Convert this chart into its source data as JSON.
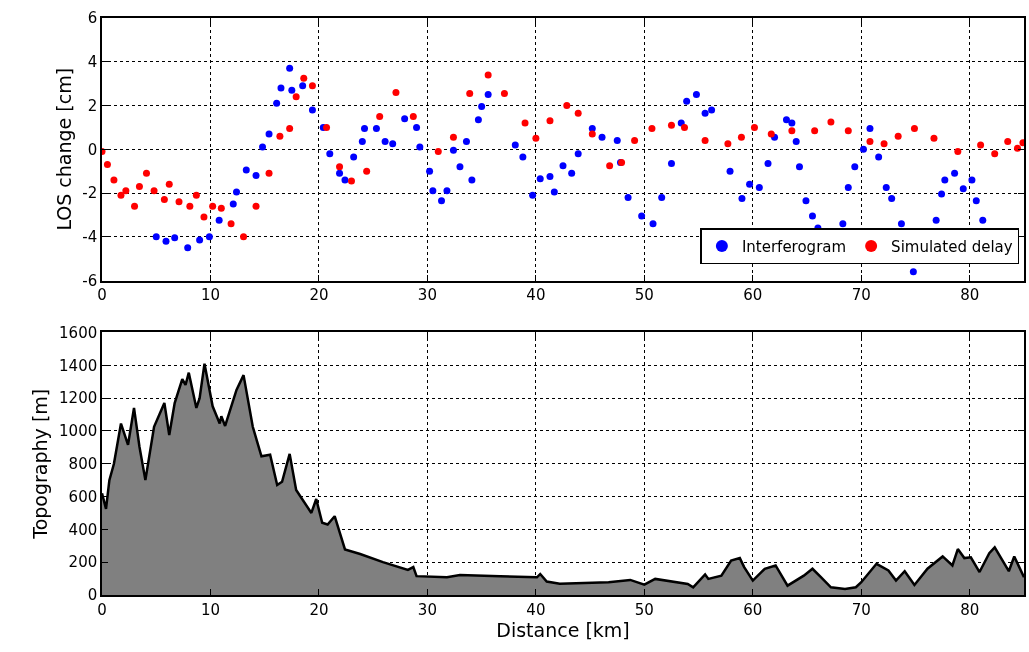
{
  "chart_data": [
    {
      "type": "scatter",
      "ylabel": "LOS change [cm]",
      "xlim": [
        0,
        85
      ],
      "xticks": [
        0,
        10,
        20,
        30,
        40,
        50,
        60,
        70,
        80
      ],
      "ylim": [
        -6,
        6
      ],
      "yticks": [
        -6,
        -4,
        -2,
        0,
        2,
        4,
        6
      ],
      "grid": true,
      "legend": "bottom right",
      "marker": "circle",
      "series": [
        {
          "name": "Interferogram",
          "color": "#0000ff",
          "x": [
            5,
            5.9,
            6.7,
            7.9,
            9,
            9.9,
            10.8,
            12.1,
            12.4,
            13.3,
            14.2,
            14.8,
            15.4,
            16.1,
            16.5,
            17.3,
            17.5,
            18.5,
            19.4,
            20.4,
            21,
            21.9,
            22.4,
            23.2,
            24,
            24.2,
            25.3,
            26.1,
            26.8,
            27.9,
            29,
            29.3,
            30.2,
            30.5,
            31.3,
            31.8,
            32.4,
            33,
            33.6,
            34.1,
            34.7,
            35,
            35.6,
            38.1,
            38.8,
            39.7,
            40.4,
            41.3,
            41.7,
            42.5,
            43.3,
            43.9,
            45.2,
            46.1,
            47.5,
            47.8,
            48.5,
            49.75,
            50.8,
            51.6,
            52.5,
            53.4,
            53.9,
            54.8,
            55.6,
            56.2,
            57.9,
            59,
            59.7,
            60.6,
            61.4,
            62,
            63.1,
            63.6,
            64,
            64.3,
            64.9,
            65.5,
            66,
            68.3,
            68.8,
            69.4,
            70.2,
            70.8,
            71.6,
            72.3,
            72.8,
            73.7,
            74.8,
            76.9,
            77.4,
            77.7,
            78.6,
            79.4,
            80.2,
            80.6,
            81.2
          ],
          "values": [
            -4.0,
            -4.2,
            -4.05,
            -4.5,
            -4.15,
            -4.0,
            -3.25,
            -2.5,
            -1.95,
            -0.95,
            -1.2,
            0.1,
            0.7,
            2.1,
            2.8,
            3.7,
            2.7,
            2.9,
            1.8,
            1.0,
            -0.2,
            -1.1,
            -1.4,
            -0.35,
            0.35,
            0.95,
            0.95,
            0.35,
            0.25,
            1.4,
            1.0,
            0.1,
            -1.0,
            -1.9,
            -2.35,
            -1.9,
            -0.05,
            -0.8,
            0.35,
            -1.4,
            1.35,
            1.95,
            2.5,
            0.2,
            -0.35,
            -2.1,
            -1.35,
            -1.25,
            -1.95,
            -0.75,
            -1.1,
            -0.2,
            0.95,
            0.55,
            0.4,
            -0.6,
            -2.2,
            -3.05,
            -3.4,
            -2.2,
            -0.65,
            1.2,
            2.2,
            2.5,
            1.65,
            1.8,
            -1.0,
            -2.25,
            -1.6,
            -1.75,
            -0.65,
            0.55,
            1.35,
            1.2,
            0.35,
            -0.8,
            -2.35,
            -3.05,
            -3.6,
            -3.4,
            -1.75,
            -0.8,
            0,
            0.95,
            -0.35,
            -1.75,
            -2.25,
            -3.4,
            -5.6,
            -3.25,
            -2.05,
            -1.4,
            -1.1,
            -1.8,
            -1.4,
            -2.35,
            -3.25
          ]
        },
        {
          "name": "Simulated delay",
          "color": "#ff0000",
          "x": [
            0,
            0.5,
            1.1,
            1.75,
            2.2,
            3,
            3.45,
            4.1,
            4.8,
            5.75,
            6.2,
            7.1,
            8.1,
            8.7,
            9.4,
            10.2,
            11,
            11.9,
            13.05,
            14.2,
            15.4,
            16.4,
            17.3,
            17.9,
            18.6,
            19.4,
            20.7,
            21.9,
            23,
            24.4,
            25.6,
            27.1,
            28.7,
            31,
            32.4,
            33.9,
            35.6,
            37.1,
            39,
            40,
            41.3,
            42.85,
            43.9,
            45.2,
            46.8,
            47.9,
            49.1,
            50.7,
            52.5,
            53.7,
            55.6,
            57.7,
            58.95,
            60.15,
            61.7,
            63.6,
            65.7,
            67.2,
            68.8,
            70.8,
            72.1,
            73.4,
            74.9,
            76.7,
            78.9,
            81,
            82.3,
            83.5,
            84.4,
            84.9
          ],
          "values": [
            -0.1,
            -0.7,
            -1.4,
            -2.1,
            -1.9,
            -2.6,
            -1.7,
            -1.1,
            -1.9,
            -2.3,
            -1.6,
            -2.4,
            -2.6,
            -2.1,
            -3.1,
            -2.6,
            -2.7,
            -3.4,
            -4.0,
            -2.6,
            -1.1,
            0.6,
            0.95,
            2.4,
            3.25,
            2.9,
            1.0,
            -0.8,
            -1.45,
            -1.0,
            1.5,
            2.6,
            1.5,
            -0.1,
            0.55,
            2.55,
            3.4,
            2.55,
            1.2,
            0.5,
            1.3,
            2.0,
            1.65,
            0.7,
            -0.75,
            -0.6,
            0.4,
            0.95,
            1.1,
            1.0,
            0.4,
            0.25,
            0.55,
            1.0,
            0.7,
            0.85,
            0.85,
            1.25,
            0.85,
            0.35,
            0.25,
            0.6,
            0.95,
            0.5,
            -0.1,
            0.2,
            -0.2,
            0.35,
            0.05,
            0.3
          ]
        }
      ]
    },
    {
      "type": "area",
      "xlabel": "Distance [km]",
      "ylabel": "Topography [m]",
      "xlim": [
        0,
        85
      ],
      "xticks": [
        0,
        10,
        20,
        30,
        40,
        50,
        60,
        70,
        80
      ],
      "ylim": [
        0,
        1600
      ],
      "yticks": [
        0,
        200,
        400,
        600,
        800,
        1000,
        1200,
        1400,
        1600
      ],
      "grid": true,
      "series": [
        {
          "color": "#808080",
          "x": [
            0,
            0.37,
            0.68,
            1.1,
            1.75,
            2.4,
            2.95,
            3.45,
            4,
            4.8,
            5.75,
            6.2,
            6.7,
            7.4,
            7.7,
            8,
            8.7,
            9,
            9.45,
            10.2,
            10.85,
            11,
            11.35,
            12.4,
            13.05,
            13.9,
            14.7,
            15.5,
            16.15,
            16.6,
            17.3,
            17.9,
            19.3,
            19.75,
            20.3,
            20.8,
            21.45,
            22.4,
            23.8,
            25.9,
            28.2,
            28.7,
            29,
            31.8,
            33,
            36.7,
            40.1,
            40.4,
            41,
            42.2,
            46.7,
            48.7,
            50,
            51,
            54,
            54.5,
            55.6,
            55.9,
            57.1,
            58,
            58.8,
            59.2,
            60,
            61.1,
            62.1,
            63.2,
            64.7,
            65.5,
            66.3,
            67.2,
            68.5,
            69.5,
            70,
            71.4,
            72.5,
            73.2,
            74,
            74.9,
            76.1,
            77.5,
            78.4,
            78.9,
            79.5,
            80.1,
            80.9,
            81.8,
            82.3,
            83.6,
            84.1,
            85
          ],
          "values": [
            620,
            525,
            700,
            800,
            1045,
            915,
            1140,
            905,
            700,
            1025,
            1170,
            975,
            1170,
            1315,
            1280,
            1355,
            1140,
            1200,
            1410,
            1150,
            1045,
            1090,
            1030,
            1250,
            1340,
            1025,
            845,
            855,
            670,
            690,
            860,
            640,
            500,
            585,
            440,
            430,
            480,
            278,
            250,
            200,
            153,
            170,
            115,
            108,
            122,
            115,
            108,
            128,
            82,
            68,
            78,
            92,
            63,
            98,
            67,
            47,
            125,
            98,
            118,
            210,
            225,
            170,
            88,
            160,
            180,
            57,
            118,
            160,
            108,
            47,
            37,
            47,
            78,
            190,
            150,
            88,
            145,
            61,
            160,
            235,
            180,
            280,
            225,
            230,
            140,
            255,
            290,
            145,
            235,
            108
          ]
        }
      ]
    }
  ]
}
